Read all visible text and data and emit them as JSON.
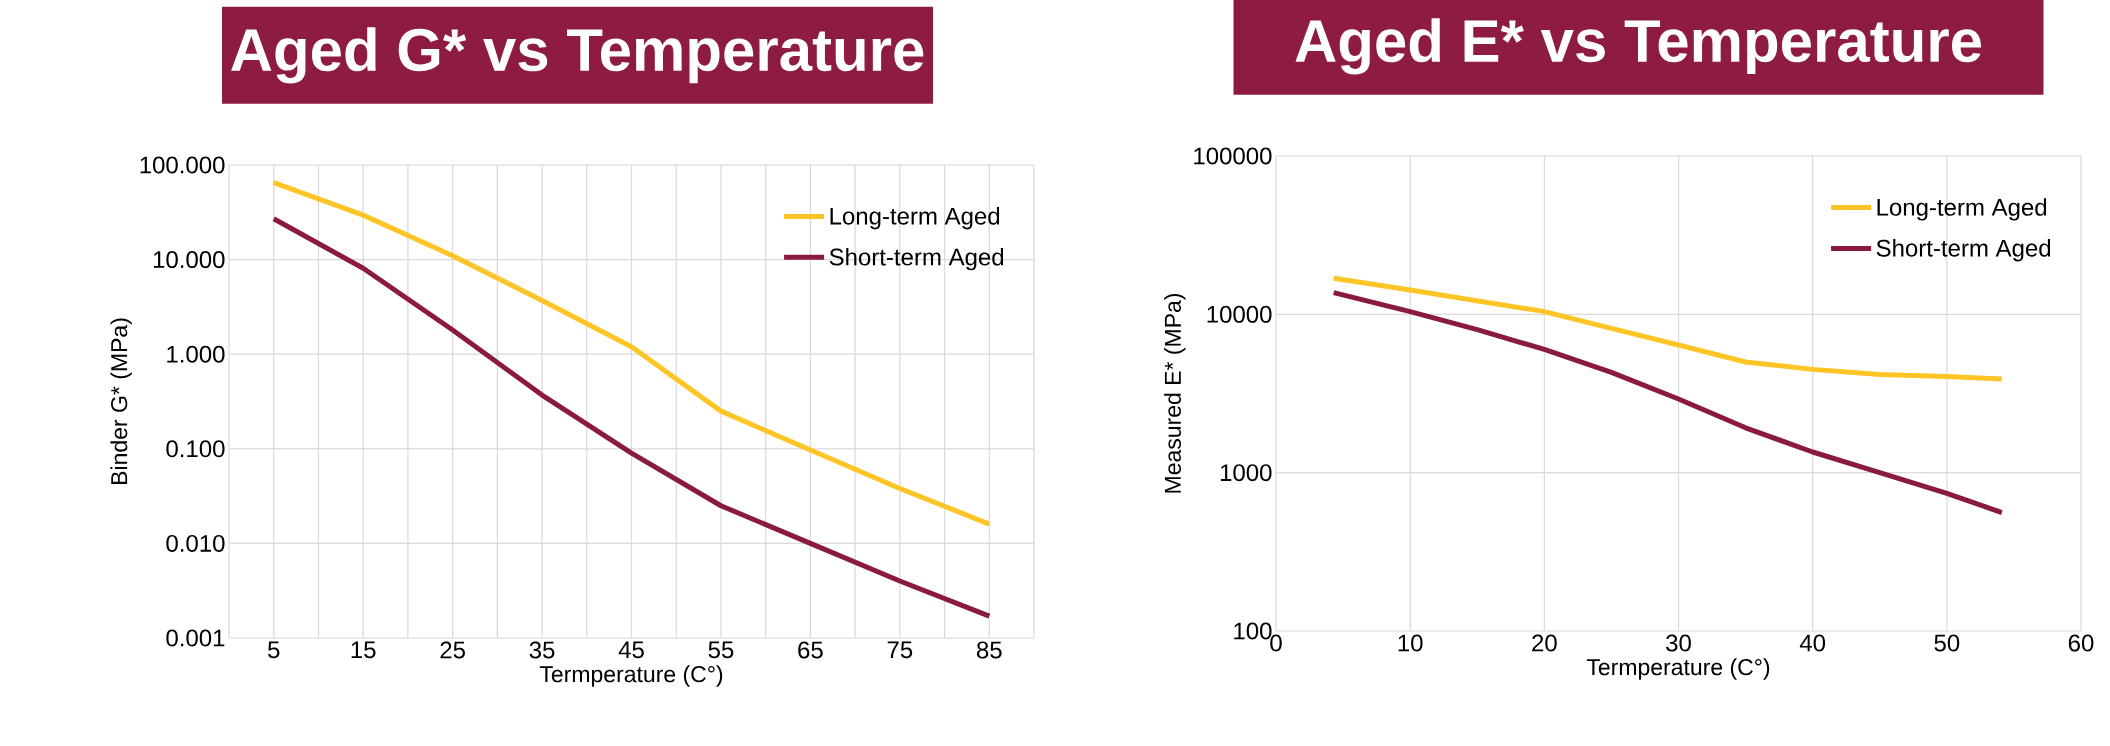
{
  "chart_data": [
    {
      "type": "line",
      "title": "Aged G* vs Temperature",
      "xlabel": "Termperature (C°)",
      "ylabel": "Binder G* (MPa)",
      "categories": [
        "5",
        "15",
        "25",
        "35",
        "45",
        "55",
        "65",
        "75",
        "85"
      ],
      "series": [
        {
          "name": "Long-term Aged",
          "color": "#ffc425",
          "values": [
            65,
            29.5,
            11,
            3.7,
            1.2,
            0.25,
            0.097,
            0.038,
            0.016
          ]
        },
        {
          "name": "Short-term Aged",
          "color": "#8b1a3f",
          "values": [
            27,
            8.1,
            1.8,
            0.37,
            0.09,
            0.025,
            0.01,
            0.004,
            0.0017
          ]
        }
      ],
      "log": "y",
      "ylim": [
        0.001,
        100
      ],
      "yticks": [
        0.001,
        {
          "value": 0.01,
          "label": "0.010"
        },
        {
          "value": 0.1,
          "label": "0.100"
        },
        {
          "value": 1,
          "label": "1.000"
        },
        {
          "value": 10,
          "label": "10.000"
        },
        {
          "value": 100,
          "label": "100.000"
        }
      ],
      "grid": true,
      "legend": "top right"
    },
    {
      "type": "line",
      "title": "Aged E* vs Temperature",
      "xlabel": "Termperature (C°)",
      "ylabel": "Measured E* (MPa)",
      "series": [
        {
          "name": "Long-term Aged",
          "color": "#ffc425",
          "x": [
            4.3,
            10,
            20,
            25,
            30,
            35,
            40,
            45,
            50,
            54.1
          ],
          "values": [
            16900,
            14250,
            10400,
            8150,
            6400,
            5000,
            4490,
            4170,
            4050,
            3900
          ]
        },
        {
          "name": "Short-term Aged",
          "color": "#8b1a3f",
          "x": [
            4.3,
            10,
            15,
            20,
            25,
            30,
            35,
            40,
            45,
            50,
            54.1
          ],
          "values": [
            13700,
            10400,
            8000,
            6000,
            4300,
            2920,
            1920,
            1350,
            1000,
            740,
            560
          ]
        }
      ],
      "log": "y",
      "xlim": [
        0,
        60
      ],
      "xticks": [
        0,
        10,
        20,
        30,
        40,
        50,
        60
      ],
      "ylim": [
        100,
        100000
      ],
      "yticks": [
        100,
        1000,
        10000,
        100000
      ],
      "grid": true,
      "legend": "top right"
    }
  ]
}
